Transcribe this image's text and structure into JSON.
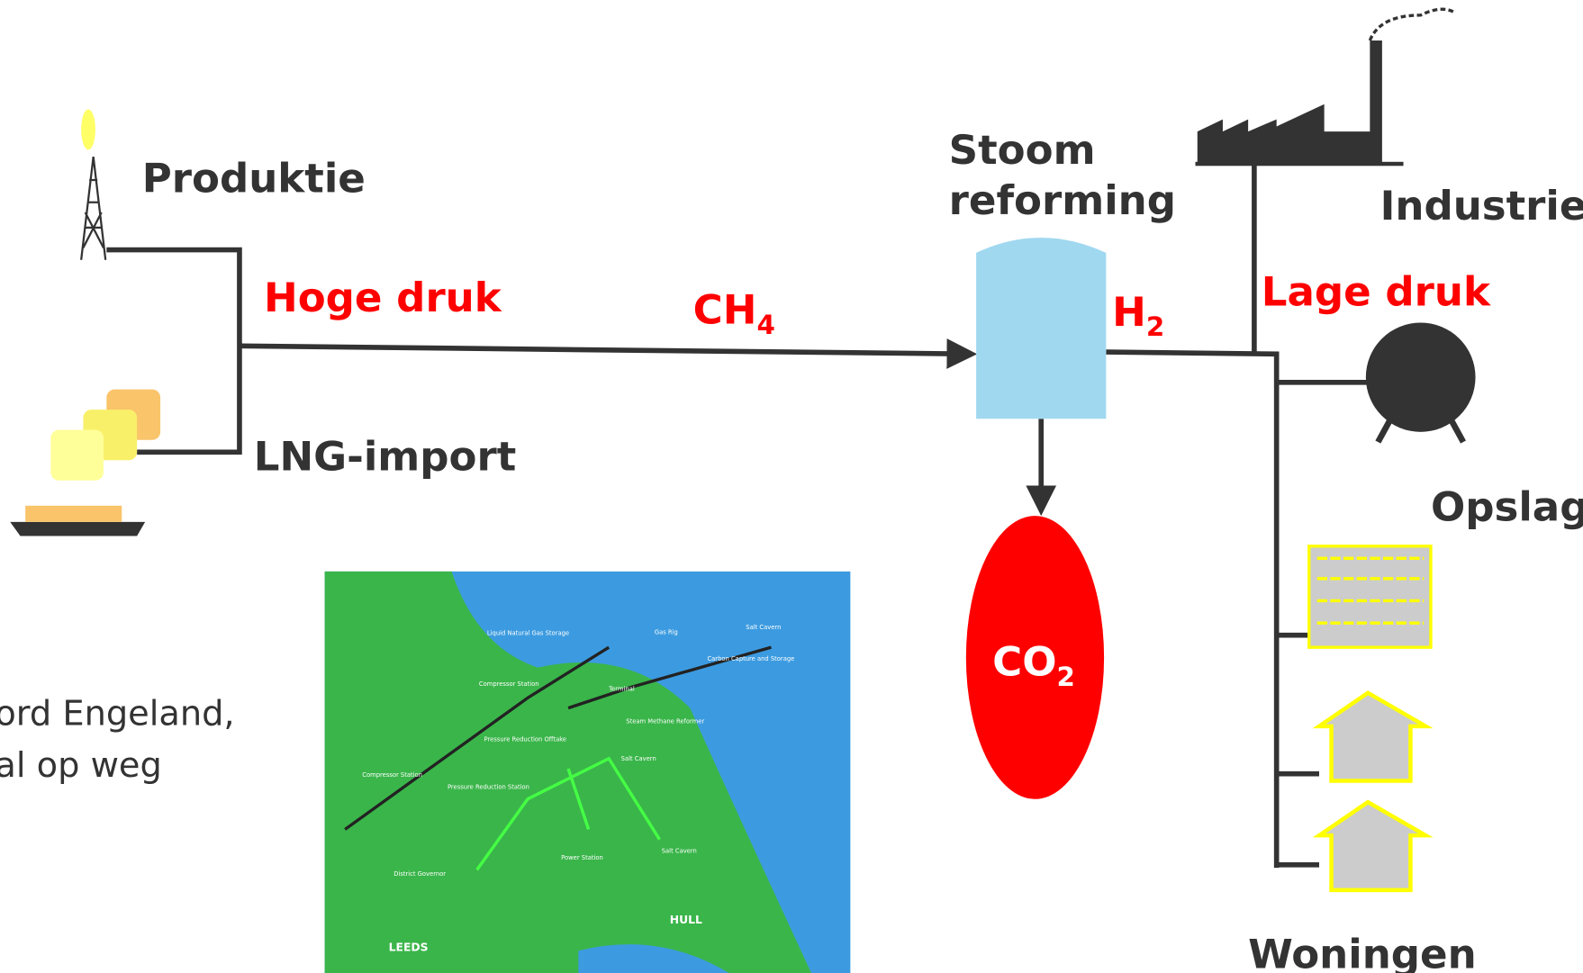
{
  "labels": {
    "production": "Produktie",
    "high_pressure": "Hoge druk",
    "methane": {
      "base": "CH",
      "sub": "4"
    },
    "lng_import": "LNG-import",
    "reforming": [
      "Stoom",
      "reforming"
    ],
    "hydrogen": {
      "base": "H",
      "sub": "2"
    },
    "co2": {
      "base": "CO",
      "sub": "2"
    },
    "industry": "Industrie",
    "low_pressure": "Lage druk",
    "storage": "Opslag",
    "homes": "Woningen"
  },
  "side_text": [
    "ord Engeland,",
    "al op weg"
  ],
  "map": {
    "labels": [
      "Liquid Natural Gas Storage",
      "Gas Rig",
      "Salt Cavern",
      "Carbon Capture and Storage",
      "Compressor Station",
      "Terminal",
      "Steam Methane Reformer",
      "Pressure Reduction Offtake",
      "Salt Cavern",
      "Compressor Station",
      "Pressure Reduction Station",
      "Power Station",
      "Salt Cavern",
      "District Governor"
    ],
    "cities": [
      "LEEDS",
      "HULL"
    ]
  }
}
